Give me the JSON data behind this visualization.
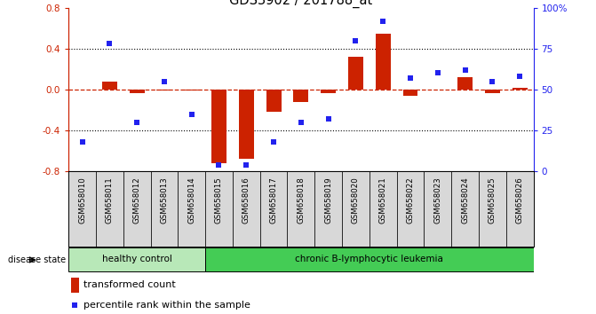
{
  "title": "GDS3902 / 201788_at",
  "samples": [
    "GSM658010",
    "GSM658011",
    "GSM658012",
    "GSM658013",
    "GSM658014",
    "GSM658015",
    "GSM658016",
    "GSM658017",
    "GSM658018",
    "GSM658019",
    "GSM658020",
    "GSM658021",
    "GSM658022",
    "GSM658023",
    "GSM658024",
    "GSM658025",
    "GSM658026"
  ],
  "transformed_count": [
    0.0,
    0.08,
    -0.04,
    -0.01,
    -0.01,
    -0.72,
    -0.68,
    -0.22,
    -0.12,
    -0.04,
    0.32,
    0.55,
    -0.06,
    0.0,
    0.12,
    -0.04,
    0.02
  ],
  "percentile_rank": [
    18,
    78,
    30,
    55,
    35,
    4,
    4,
    18,
    30,
    32,
    80,
    92,
    57,
    60,
    62,
    55,
    58
  ],
  "group_labels": [
    "healthy control",
    "chronic B-lymphocytic leukemia"
  ],
  "num_healthy": 5,
  "num_leukemia": 12,
  "bar_color": "#cc2200",
  "dot_color": "#2222ee",
  "ylim": [
    -0.8,
    0.8
  ],
  "yticks_left": [
    -0.8,
    -0.4,
    0.0,
    0.4,
    0.8
  ],
  "yticks_right": [
    0,
    25,
    50,
    75,
    100
  ],
  "dotted_lines": [
    -0.4,
    0.4
  ],
  "disease_state_label": "disease state",
  "legend_bar_label": "transformed count",
  "legend_dot_label": "percentile rank within the sample"
}
